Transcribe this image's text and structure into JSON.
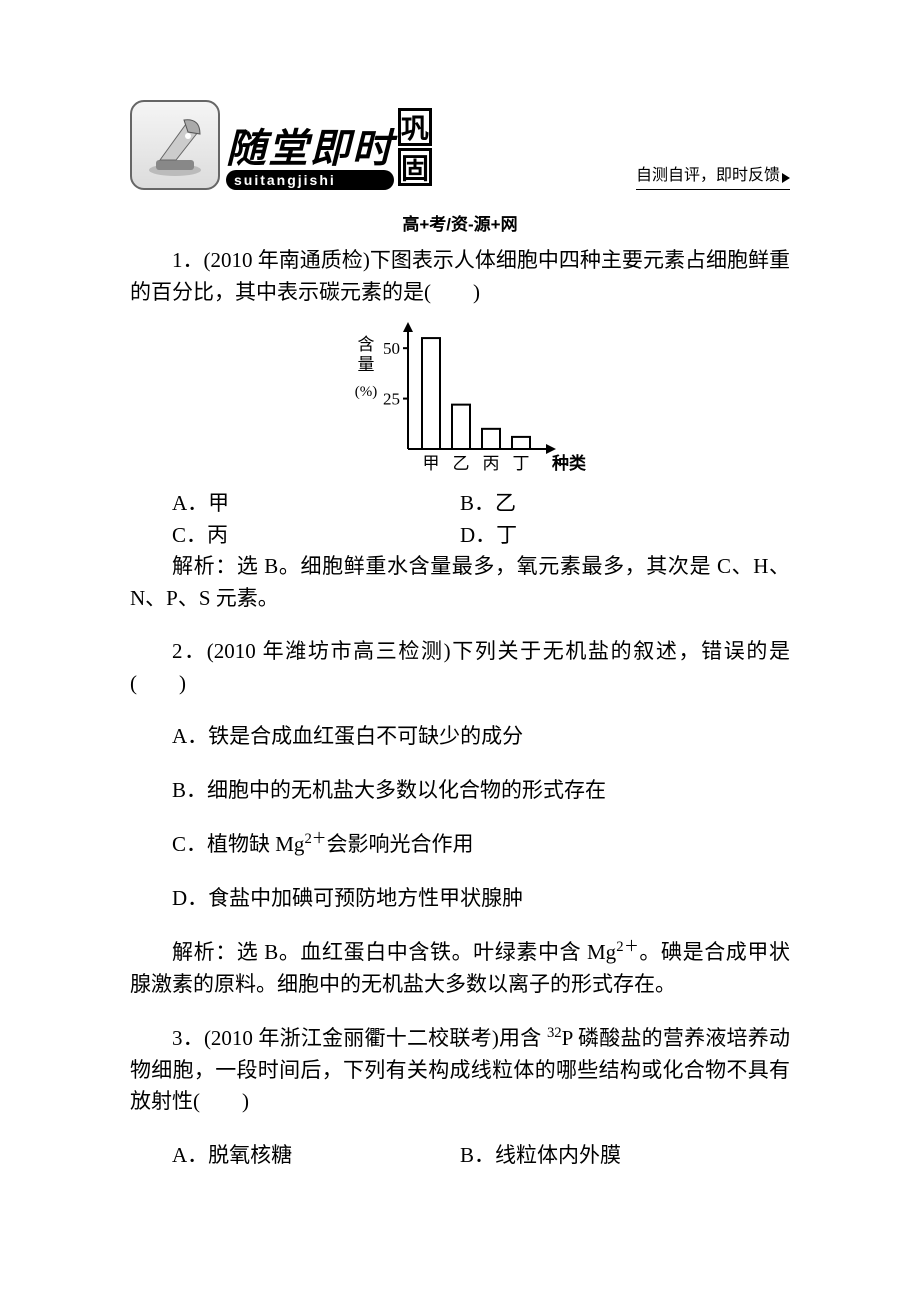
{
  "banner": {
    "big_title": "随堂即时",
    "pinyin": "suitangjishi",
    "side1": "巩",
    "side2": "固",
    "tagline": "自测自评，即时反馈"
  },
  "source_line": "高+考/资-源+网",
  "q1": {
    "stem": "1．(2010 年南通质检)下图表示人体细胞中四种主要元素占细胞鲜重的百分比，其中表示碳元素的是(　　)",
    "chart": {
      "type": "bar",
      "y_label": "含量(%)",
      "x_label": "种类",
      "categories": [
        "甲",
        "乙",
        "丙",
        "丁"
      ],
      "values": [
        55,
        22,
        10,
        6
      ],
      "y_ticks": [
        25,
        50
      ],
      "ymax": 60,
      "bar_color": "#ffffff",
      "border_color": "#000000",
      "axis_color": "#000000",
      "label_fontsize": 17,
      "tick_fontsize": 17
    },
    "optA": "A．甲",
    "optB": "B．乙",
    "optC": "C．丙",
    "optD": "D．丁",
    "answer": "解析：选 B。细胞鲜重水含量最多，氧元素最多，其次是 C、H、N、P、S 元素。"
  },
  "q2": {
    "stem": "2．(2010 年潍坊市高三检测)下列关于无机盐的叙述，错误的是(　　)",
    "optA": "A．铁是合成血红蛋白不可缺少的成分",
    "optB": "B．细胞中的无机盐大多数以化合物的形式存在",
    "optC_pre": "C．植物缺 Mg",
    "optC_sup": "2＋",
    "optC_post": "会影响光合作用",
    "optD": "D．食盐中加碘可预防地方性甲状腺肿",
    "ans_pre": "解析：选 B。血红蛋白中含铁。叶绿素中含 Mg",
    "ans_sup": "2＋",
    "ans_post": "。碘是合成甲状腺激素的原料。细胞中的无机盐大多数以离子的形式存在。"
  },
  "q3": {
    "stem_pre": "3．(2010 年浙江金丽衢十二校联考)用含 ",
    "stem_sup": "32",
    "stem_post": "P 磷酸盐的营养液培养动物细胞，一段时间后，下列有关构成线粒体的哪些结构或化合物不具有放射性(　　)",
    "optA": "A．脱氧核糖",
    "optB": "B．线粒体内外膜"
  }
}
